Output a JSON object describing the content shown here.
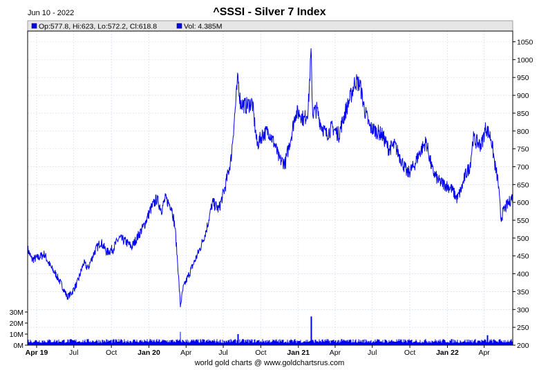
{
  "date_label": "Jun 10 - 2022",
  "footer": "world gold charts @ www.goldchartsrus.com",
  "legend": {
    "ohlc": "Op:577.8, Hi:623, Lo:572.2, Cl:618.8",
    "volume": "Vol: 4.385M"
  },
  "colors": {
    "series": "#0000ee",
    "grid": "#c8d8ec",
    "legend_bg": "#e6e6e6"
  },
  "chart_data": {
    "type": "line",
    "title": "^SSSI - Silver 7 Index",
    "x_ticks": [
      "Apr 19",
      "Jul",
      "Oct",
      "Jan 20",
      "Apr",
      "Jul",
      "Oct",
      "Jan 21",
      "Apr",
      "Jul",
      "Oct",
      "Jan 22",
      "Apr"
    ],
    "x_tick_bold": [
      true,
      false,
      false,
      true,
      false,
      false,
      false,
      true,
      false,
      false,
      false,
      true,
      false
    ],
    "x_range": [
      "2019-03-10",
      "2022-06-10"
    ],
    "y_ticks": [
      200,
      250,
      300,
      350,
      400,
      450,
      500,
      550,
      600,
      650,
      700,
      750,
      800,
      850,
      900,
      950,
      1000,
      1050
    ],
    "ylim": [
      200,
      1080
    ],
    "grid": true,
    "series": [
      {
        "name": "Close",
        "points": [
          [
            "2019-03-10",
            470
          ],
          [
            "2019-03-20",
            440
          ],
          [
            "2019-04-05",
            445
          ],
          [
            "2019-04-20",
            455
          ],
          [
            "2019-05-05",
            420
          ],
          [
            "2019-05-20",
            395
          ],
          [
            "2019-06-05",
            360
          ],
          [
            "2019-06-15",
            335
          ],
          [
            "2019-06-25",
            345
          ],
          [
            "2019-07-10",
            375
          ],
          [
            "2019-07-25",
            430
          ],
          [
            "2019-08-05",
            415
          ],
          [
            "2019-08-20",
            460
          ],
          [
            "2019-09-05",
            490
          ],
          [
            "2019-09-20",
            460
          ],
          [
            "2019-10-05",
            470
          ],
          [
            "2019-10-20",
            500
          ],
          [
            "2019-11-05",
            490
          ],
          [
            "2019-11-20",
            475
          ],
          [
            "2019-12-05",
            505
          ],
          [
            "2019-12-20",
            535
          ],
          [
            "2020-01-05",
            580
          ],
          [
            "2020-01-20",
            610
          ],
          [
            "2020-02-01",
            580
          ],
          [
            "2020-02-10",
            610
          ],
          [
            "2020-02-25",
            590
          ],
          [
            "2020-03-05",
            530
          ],
          [
            "2020-03-12",
            420
          ],
          [
            "2020-03-18",
            310
          ],
          [
            "2020-03-25",
            360
          ],
          [
            "2020-04-05",
            390
          ],
          [
            "2020-04-20",
            430
          ],
          [
            "2020-05-05",
            470
          ],
          [
            "2020-05-20",
            520
          ],
          [
            "2020-06-05",
            600
          ],
          [
            "2020-06-20",
            580
          ],
          [
            "2020-07-05",
            640
          ],
          [
            "2020-07-20",
            720
          ],
          [
            "2020-07-28",
            830
          ],
          [
            "2020-08-06",
            950
          ],
          [
            "2020-08-12",
            880
          ],
          [
            "2020-08-25",
            870
          ],
          [
            "2020-09-10",
            880
          ],
          [
            "2020-09-22",
            760
          ],
          [
            "2020-10-05",
            790
          ],
          [
            "2020-10-20",
            800
          ],
          [
            "2020-11-05",
            760
          ],
          [
            "2020-11-15",
            720
          ],
          [
            "2020-11-30",
            710
          ],
          [
            "2020-12-15",
            790
          ],
          [
            "2020-12-25",
            850
          ],
          [
            "2021-01-05",
            850
          ],
          [
            "2021-01-15",
            830
          ],
          [
            "2021-01-25",
            860
          ],
          [
            "2021-02-01",
            1020
          ],
          [
            "2021-02-05",
            850
          ],
          [
            "2021-02-15",
            860
          ],
          [
            "2021-02-25",
            820
          ],
          [
            "2021-03-10",
            790
          ],
          [
            "2021-03-25",
            810
          ],
          [
            "2021-04-10",
            790
          ],
          [
            "2021-04-25",
            850
          ],
          [
            "2021-05-10",
            900
          ],
          [
            "2021-05-20",
            940
          ],
          [
            "2021-06-01",
            930
          ],
          [
            "2021-06-12",
            860
          ],
          [
            "2021-06-25",
            810
          ],
          [
            "2021-07-10",
            800
          ],
          [
            "2021-07-25",
            790
          ],
          [
            "2021-08-10",
            750
          ],
          [
            "2021-08-25",
            760
          ],
          [
            "2021-09-10",
            720
          ],
          [
            "2021-09-25",
            680
          ],
          [
            "2021-10-10",
            700
          ],
          [
            "2021-10-25",
            740
          ],
          [
            "2021-11-10",
            770
          ],
          [
            "2021-11-25",
            690
          ],
          [
            "2021-12-10",
            660
          ],
          [
            "2021-12-25",
            650
          ],
          [
            "2022-01-10",
            640
          ],
          [
            "2022-01-25",
            610
          ],
          [
            "2022-02-05",
            640
          ],
          [
            "2022-02-15",
            680
          ],
          [
            "2022-02-25",
            700
          ],
          [
            "2022-03-05",
            780
          ],
          [
            "2022-03-12",
            770
          ],
          [
            "2022-03-25",
            760
          ],
          [
            "2022-04-05",
            810
          ],
          [
            "2022-04-18",
            780
          ],
          [
            "2022-04-28",
            700
          ],
          [
            "2022-05-05",
            660
          ],
          [
            "2022-05-12",
            555
          ],
          [
            "2022-05-20",
            580
          ],
          [
            "2022-06-01",
            600
          ],
          [
            "2022-06-10",
            618.8
          ]
        ]
      }
    ],
    "volume": {
      "y_ticks": [
        "0M",
        "10M",
        "20M",
        "30M"
      ],
      "y_tick_values": [
        0,
        10,
        20,
        30
      ],
      "baseline": 4,
      "spikes": [
        [
          "2021-02-01",
          26
        ],
        [
          "2020-03-18",
          12
        ],
        [
          "2020-08-06",
          10
        ],
        [
          "2022-04-10",
          9
        ]
      ]
    }
  }
}
